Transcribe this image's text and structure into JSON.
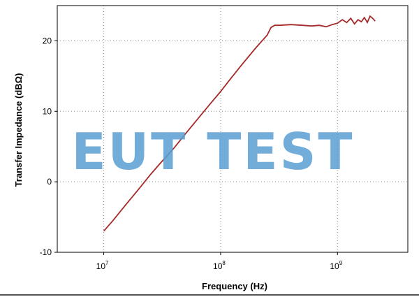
{
  "watermark": "EUT TEST",
  "colors": {
    "series": "#a52a2a",
    "grid": "#888888",
    "frame": "#000000",
    "watermark": "#5a9fd4"
  },
  "chart_data": {
    "type": "line",
    "title": "",
    "xlabel": "Frequency (Hz)",
    "ylabel": "Transfer Impedance (dBΩ)",
    "x_scale": "log",
    "xlim": [
      4000000,
      4000000000
    ],
    "ylim": [
      -10,
      25
    ],
    "grid": true,
    "legend": "none",
    "x_ticks": [
      {
        "value": 10000000,
        "base": "10",
        "exp": "7"
      },
      {
        "value": 100000000,
        "base": "10",
        "exp": "8"
      },
      {
        "value": 1000000000,
        "base": "10",
        "exp": "9"
      }
    ],
    "y_ticks": [
      -10,
      0,
      10,
      20
    ],
    "series": [
      {
        "name": "",
        "x": [
          10000000,
          12000000,
          15000000,
          20000000,
          25000000,
          30000000,
          40000000,
          50000000,
          60000000,
          80000000,
          100000000,
          120000000,
          150000000,
          200000000,
          250000000,
          270000000,
          290000000,
          320000000,
          400000000,
          500000000,
          600000000,
          700000000,
          800000000,
          900000000,
          1000000000,
          1100000000,
          1200000000,
          1300000000,
          1400000000,
          1500000000,
          1600000000,
          1700000000,
          1800000000,
          1900000000,
          2000000000,
          2100000000
        ],
        "y": [
          -7.0,
          -5.5,
          -3.5,
          -1.0,
          1.0,
          2.5,
          4.8,
          6.8,
          8.4,
          10.9,
          12.8,
          14.5,
          16.5,
          19.0,
          20.8,
          21.9,
          22.2,
          22.2,
          22.3,
          22.2,
          22.1,
          22.2,
          22.0,
          22.3,
          22.5,
          23.0,
          22.6,
          23.2,
          22.4,
          23.0,
          22.7,
          23.3,
          22.6,
          23.5,
          23.2,
          22.8
        ]
      }
    ]
  }
}
